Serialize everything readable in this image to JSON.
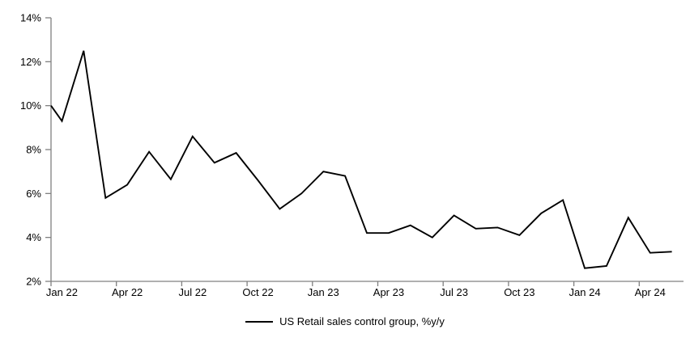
{
  "page": {
    "background": "#ffffff"
  },
  "chart_data": {
    "type": "line",
    "title": "",
    "xlabel": "",
    "ylabel": "",
    "grid": false,
    "ylim": [
      2,
      14
    ],
    "y_tick_step": 2,
    "y_axis_tick_labels": [
      "2%",
      "4%",
      "6%",
      "8%",
      "10%",
      "12%",
      "14%"
    ],
    "x_axis_tick_labels": [
      "Jan 22",
      "Apr 22",
      "Jul 22",
      "Oct 22",
      "Jan 23",
      "Apr 23",
      "Jul 23",
      "Oct 23",
      "Jan 24",
      "Apr 24"
    ],
    "x_categories": [
      "Jan 22",
      "Feb 22",
      "Mar 22",
      "Apr 22",
      "May 22",
      "Jun 22",
      "Jul 22",
      "Aug 22",
      "Sep 22",
      "Oct 22",
      "Nov 22",
      "Dec 22",
      "Jan 23",
      "Feb 23",
      "Mar 23",
      "Apr 23",
      "May 23",
      "Jun 23",
      "Jul 23",
      "Aug 23",
      "Sep 23",
      "Oct 23",
      "Nov 23",
      "Dec 23",
      "Jan 24",
      "Feb 24",
      "Mar 24",
      "Apr 24",
      "May 24"
    ],
    "series": [
      {
        "name": "US Retail sales control group, %y/y",
        "color": "#000000",
        "values": [
          9.3,
          12.5,
          5.8,
          6.4,
          7.9,
          6.65,
          8.6,
          7.4,
          7.85,
          6.6,
          5.3,
          6.0,
          7.0,
          6.8,
          4.2,
          4.2,
          4.55,
          4.0,
          5.0,
          4.4,
          4.45,
          4.1,
          5.1,
          5.7,
          2.6,
          2.7,
          4.9,
          3.3,
          3.35
        ]
      }
    ],
    "clipped_start_value_at_left_axis": 10.0,
    "legend_position": "bottom-center",
    "axis_color": "#808080",
    "text_color": "#000000"
  }
}
